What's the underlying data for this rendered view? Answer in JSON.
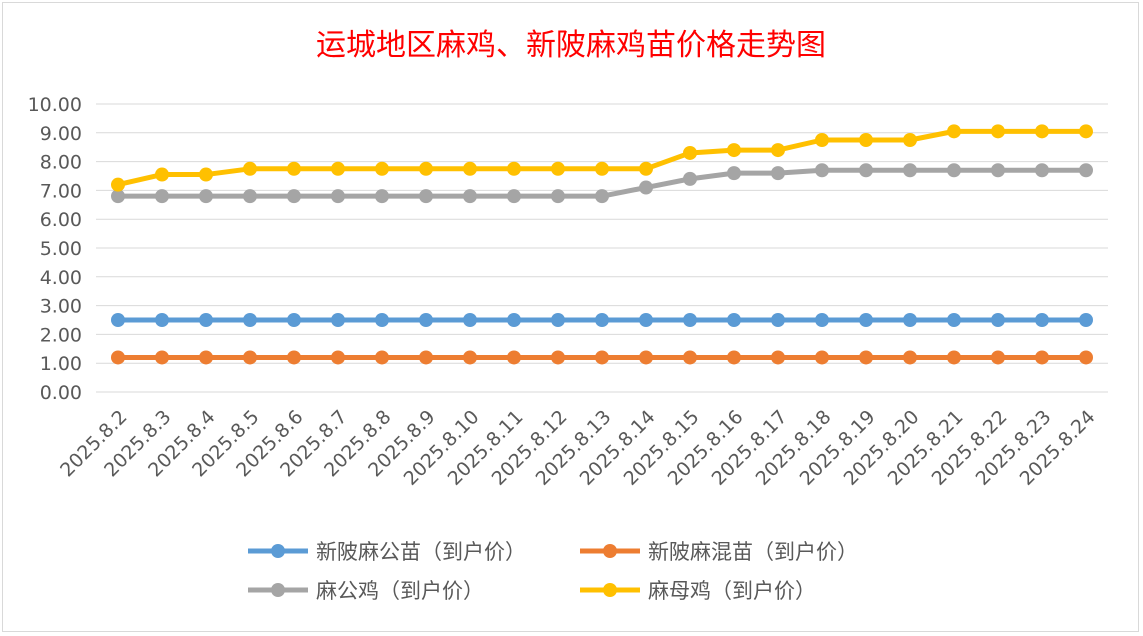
{
  "chart_data": {
    "type": "line",
    "title": "运城地区麻鸡、新陂麻鸡苗价格走势图",
    "xlabel": "",
    "ylabel": "",
    "ylim": [
      0,
      10
    ],
    "ytick_values": [
      0,
      1,
      2,
      3,
      4,
      5,
      6,
      7,
      8,
      9,
      10
    ],
    "ytick_labels": [
      "0.00",
      "1.00",
      "2.00",
      "3.00",
      "4.00",
      "5.00",
      "6.00",
      "7.00",
      "8.00",
      "9.00",
      "10.00"
    ],
    "grid": true,
    "legend_position": "bottom",
    "categories": [
      "2025.8.2",
      "2025.8.3",
      "2025.8.4",
      "2025.8.5",
      "2025.8.6",
      "2025.8.7",
      "2025.8.8",
      "2025.8.9",
      "2025.8.10",
      "2025.8.11",
      "2025.8.12",
      "2025.8.13",
      "2025.8.14",
      "2025.8.15",
      "2025.8.16",
      "2025.8.17",
      "2025.8.18",
      "2025.8.19",
      "2025.8.20",
      "2025.8.21",
      "2025.8.22",
      "2025.8.23",
      "2025.8.24"
    ],
    "series": [
      {
        "name": "新陂麻公苗（到户价）",
        "color": "#5b9bd5",
        "values": [
          2.5,
          2.5,
          2.5,
          2.5,
          2.5,
          2.5,
          2.5,
          2.5,
          2.5,
          2.5,
          2.5,
          2.5,
          2.5,
          2.5,
          2.5,
          2.5,
          2.5,
          2.5,
          2.5,
          2.5,
          2.5,
          2.5,
          2.5
        ]
      },
      {
        "name": "新陂麻混苗（到户价）",
        "color": "#ed7d31",
        "values": [
          1.2,
          1.2,
          1.2,
          1.2,
          1.2,
          1.2,
          1.2,
          1.2,
          1.2,
          1.2,
          1.2,
          1.2,
          1.2,
          1.2,
          1.2,
          1.2,
          1.2,
          1.2,
          1.2,
          1.2,
          1.2,
          1.2,
          1.2
        ]
      },
      {
        "name": "麻公鸡（到户价）",
        "color": "#a5a5a5",
        "values": [
          6.8,
          6.8,
          6.8,
          6.8,
          6.8,
          6.8,
          6.8,
          6.8,
          6.8,
          6.8,
          6.8,
          6.8,
          7.1,
          7.4,
          7.6,
          7.6,
          7.7,
          7.7,
          7.7,
          7.7,
          7.7,
          7.7,
          7.7
        ]
      },
      {
        "name": "麻母鸡（到户价）",
        "color": "#ffc000",
        "values": [
          7.2,
          7.55,
          7.55,
          7.75,
          7.75,
          7.75,
          7.75,
          7.75,
          7.75,
          7.75,
          7.75,
          7.75,
          7.75,
          8.3,
          8.4,
          8.4,
          8.75,
          8.75,
          8.75,
          9.05,
          9.05,
          9.05,
          9.05
        ]
      }
    ]
  }
}
